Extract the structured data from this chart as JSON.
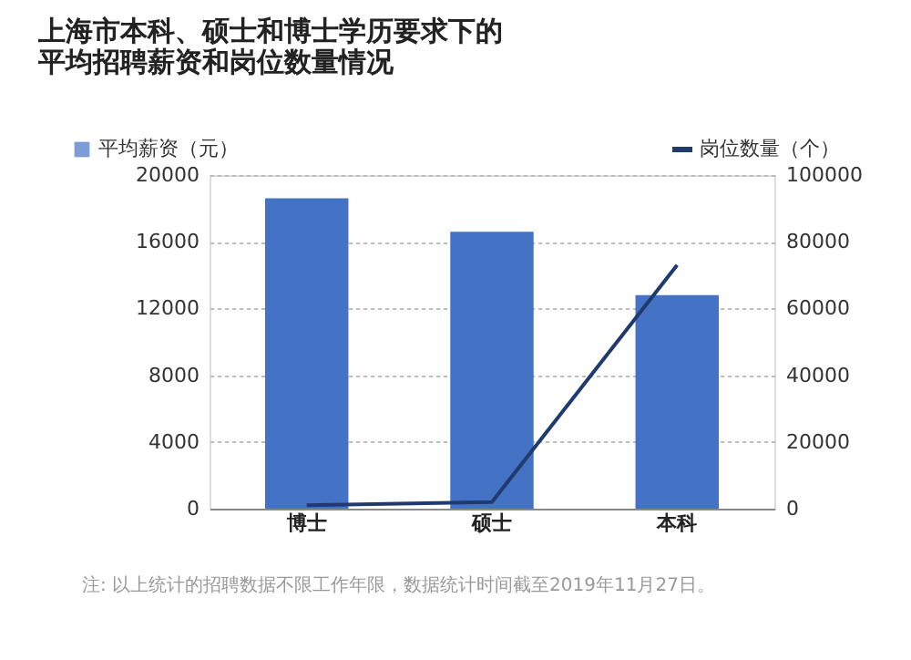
{
  "chart_data": {
    "type": "bar",
    "title": [
      "上海市本科、硕士和博士学历要求下的",
      "平均招聘薪资和岗位数量情况"
    ],
    "categories": [
      "博士",
      "硕士",
      "本科"
    ],
    "series": [
      {
        "name": "平均薪资（元）",
        "color": "#4472c4",
        "values": [
          18600,
          16600,
          12800
        ]
      },
      {
        "name": "岗位数量（个）",
        "type": "line",
        "axis": "y2",
        "color": "#1f3a6e",
        "values": [
          1000,
          2000,
          73000
        ]
      }
    ],
    "ylim": [
      0,
      20000
    ],
    "yticks": [
      0,
      4000,
      8000,
      12000,
      16000,
      20000
    ],
    "y2lim": [
      0,
      100000
    ],
    "y2ticks": [
      0,
      20000,
      40000,
      60000,
      80000,
      100000
    ],
    "grid": "y",
    "legend": "top",
    "marker": "none",
    "annotations": [
      "注: 以上统计的招聘数据不限工作年限，数据统计时间截至2019年11月27日。"
    ]
  }
}
